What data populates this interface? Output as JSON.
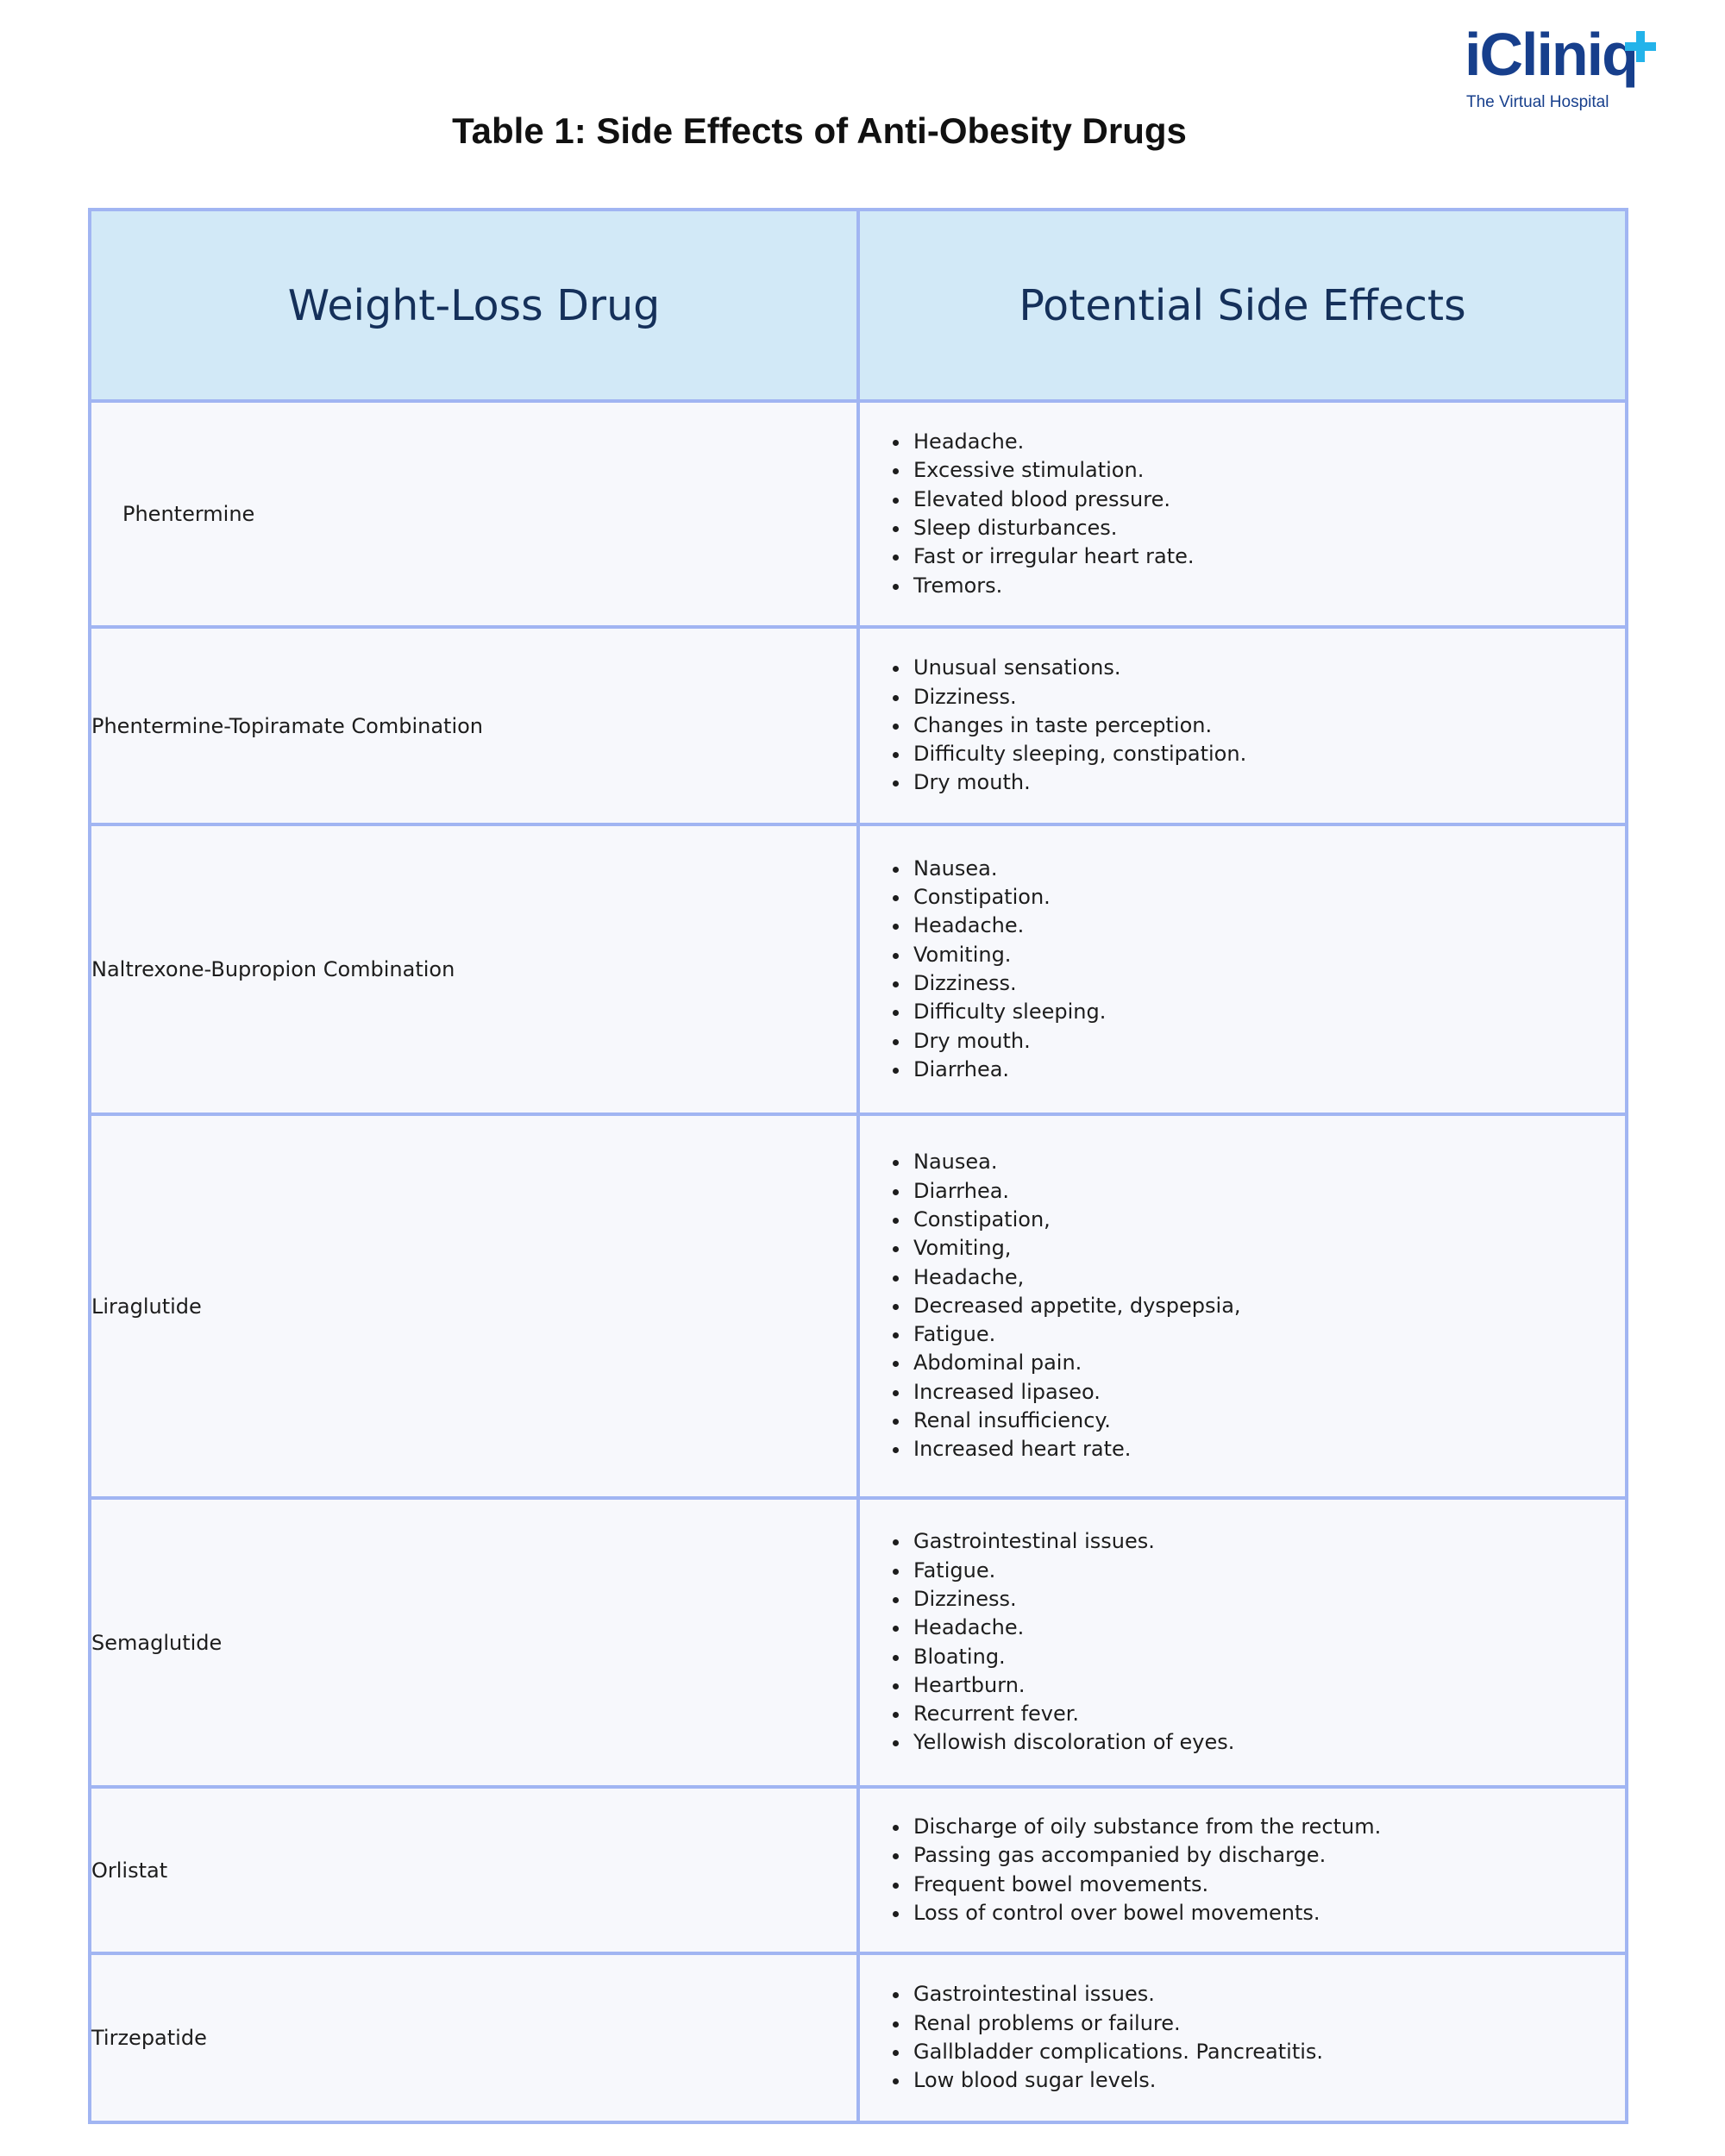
{
  "logo": {
    "brand": "iCliniq",
    "tagline": "The Virtual Hospital"
  },
  "title": "Table 1: Side Effects of Anti-Obesity Drugs",
  "table": {
    "headers": [
      "Weight-Loss Drug",
      "Potential Side Effects"
    ],
    "rows": [
      {
        "drug": "Phentermine",
        "effects": [
          "Headache.",
          "Excessive stimulation.",
          "Elevated blood pressure.",
          "Sleep disturbances.",
          "Fast or irregular heart rate.",
          "Tremors."
        ]
      },
      {
        "drug": "Phentermine-Topiramate Combination",
        "effects": [
          "Unusual sensations.",
          "Dizziness.",
          "Changes in taste perception.",
          "Difficulty sleeping, constipation.",
          "Dry mouth."
        ]
      },
      {
        "drug": "Naltrexone-Bupropion Combination",
        "effects": [
          "Nausea.",
          "Constipation.",
          "Headache.",
          "Vomiting.",
          "Dizziness.",
          "Difficulty sleeping.",
          "Dry mouth.",
          "Diarrhea."
        ]
      },
      {
        "drug": "Liraglutide",
        "effects": [
          "Nausea.",
          "Diarrhea.",
          "Constipation,",
          "Vomiting,",
          "Headache,",
          "Decreased appetite, dyspepsia,",
          "Fatigue.",
          "Abdominal pain.",
          "Increased lipaseo.",
          "Renal insufficiency.",
          "Increased heart rate."
        ]
      },
      {
        "drug": "Semaglutide",
        "effects": [
          "Gastrointestinal issues.",
          "Fatigue.",
          "Dizziness.",
          "Headache.",
          "Bloating.",
          "Heartburn.",
          "Recurrent fever.",
          "Yellowish discoloration of eyes."
        ]
      },
      {
        "drug": "Orlistat",
        "effects": [
          "Discharge of oily substance from the rectum.",
          "Passing gas accompanied by discharge.",
          "Frequent bowel movements.",
          "Loss of control over bowel movements."
        ]
      },
      {
        "drug": "Tirzepatide",
        "effects": [
          "Gastrointestinal issues.",
          "Renal problems or failure.",
          "Gallbladder complications. Pancreatitis.",
          "Low blood sugar levels."
        ]
      }
    ]
  }
}
